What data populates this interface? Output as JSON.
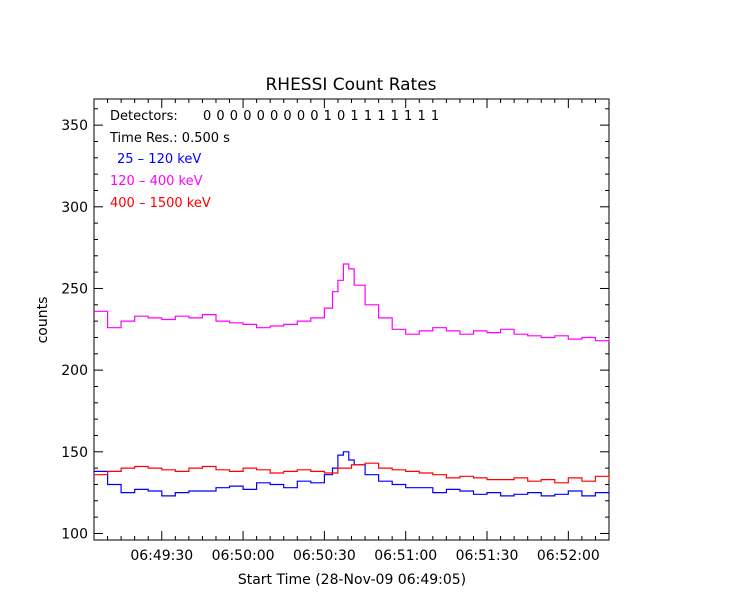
{
  "chart_data": {
    "type": "line",
    "title": "RHESSI Count Rates",
    "xlabel": "Start Time (28-Nov-09 06:49:05)",
    "ylabel": "counts",
    "x_unit": "seconds after 06:49:05",
    "xlim": [
      0,
      190
    ],
    "ylim": [
      96,
      366
    ],
    "x_ticks": [
      {
        "t": 25,
        "label": "06:49:30"
      },
      {
        "t": 55,
        "label": "06:50:00"
      },
      {
        "t": 85,
        "label": "06:50:30"
      },
      {
        "t": 115,
        "label": "06:51:00"
      },
      {
        "t": 145,
        "label": "06:51:30"
      },
      {
        "t": 175,
        "label": "06:52:00"
      }
    ],
    "y_ticks": [
      100,
      150,
      200,
      250,
      300,
      350
    ],
    "legend": {
      "detectors_label": "Detectors:",
      "detectors_flags": "0 0 0 0 0 0 0 0 0 1 0 1 1 1 1 1 1 1",
      "time_res": "Time Res.: 0.500 s",
      "placement": "top-left"
    },
    "series": [
      {
        "name": "25 – 120 keV",
        "color": "#0000ff",
        "values": [
          [
            0,
            138
          ],
          [
            5,
            130
          ],
          [
            10,
            125
          ],
          [
            15,
            127
          ],
          [
            20,
            126
          ],
          [
            25,
            123
          ],
          [
            30,
            125
          ],
          [
            35,
            126
          ],
          [
            40,
            126
          ],
          [
            45,
            128
          ],
          [
            50,
            129
          ],
          [
            55,
            127
          ],
          [
            60,
            131
          ],
          [
            65,
            130
          ],
          [
            70,
            128
          ],
          [
            75,
            132
          ],
          [
            80,
            131
          ],
          [
            85,
            136
          ],
          [
            88,
            140
          ],
          [
            90,
            148
          ],
          [
            92,
            150
          ],
          [
            94,
            145
          ],
          [
            96,
            142
          ],
          [
            100,
            136
          ],
          [
            105,
            132
          ],
          [
            110,
            130
          ],
          [
            115,
            128
          ],
          [
            120,
            128
          ],
          [
            125,
            125
          ],
          [
            130,
            127
          ],
          [
            135,
            126
          ],
          [
            140,
            124
          ],
          [
            145,
            125
          ],
          [
            150,
            123
          ],
          [
            155,
            124
          ],
          [
            160,
            125
          ],
          [
            165,
            123
          ],
          [
            170,
            124
          ],
          [
            175,
            126
          ],
          [
            180,
            123
          ],
          [
            185,
            125
          ],
          [
            190,
            124
          ]
        ]
      },
      {
        "name": "120 – 400 keV",
        "color": "#ff00ff",
        "values": [
          [
            0,
            236
          ],
          [
            5,
            226
          ],
          [
            10,
            230
          ],
          [
            15,
            233
          ],
          [
            20,
            232
          ],
          [
            25,
            231
          ],
          [
            30,
            233
          ],
          [
            35,
            232
          ],
          [
            40,
            234
          ],
          [
            45,
            230
          ],
          [
            50,
            229
          ],
          [
            55,
            228
          ],
          [
            60,
            226
          ],
          [
            65,
            227
          ],
          [
            70,
            228
          ],
          [
            75,
            230
          ],
          [
            80,
            232
          ],
          [
            85,
            238
          ],
          [
            88,
            248
          ],
          [
            90,
            255
          ],
          [
            92,
            265
          ],
          [
            94,
            262
          ],
          [
            96,
            252
          ],
          [
            100,
            240
          ],
          [
            105,
            232
          ],
          [
            110,
            225
          ],
          [
            115,
            222
          ],
          [
            120,
            224
          ],
          [
            125,
            226
          ],
          [
            130,
            224
          ],
          [
            135,
            222
          ],
          [
            140,
            224
          ],
          [
            145,
            223
          ],
          [
            150,
            225
          ],
          [
            155,
            222
          ],
          [
            160,
            221
          ],
          [
            165,
            220
          ],
          [
            170,
            221
          ],
          [
            175,
            219
          ],
          [
            180,
            220
          ],
          [
            185,
            218
          ],
          [
            190,
            220
          ]
        ]
      },
      {
        "name": "400 – 1500 keV",
        "color": "#ff0000",
        "values": [
          [
            0,
            136
          ],
          [
            5,
            138
          ],
          [
            10,
            140
          ],
          [
            15,
            141
          ],
          [
            20,
            140
          ],
          [
            25,
            139
          ],
          [
            30,
            138
          ],
          [
            35,
            140
          ],
          [
            40,
            141
          ],
          [
            45,
            139
          ],
          [
            50,
            138
          ],
          [
            55,
            140
          ],
          [
            60,
            139
          ],
          [
            65,
            137
          ],
          [
            70,
            138
          ],
          [
            75,
            139
          ],
          [
            80,
            138
          ],
          [
            85,
            137
          ],
          [
            90,
            140
          ],
          [
            95,
            142
          ],
          [
            100,
            143
          ],
          [
            105,
            140
          ],
          [
            110,
            139
          ],
          [
            115,
            138
          ],
          [
            120,
            137
          ],
          [
            125,
            136
          ],
          [
            130,
            134
          ],
          [
            135,
            135
          ],
          [
            140,
            134
          ],
          [
            145,
            133
          ],
          [
            150,
            133
          ],
          [
            155,
            134
          ],
          [
            160,
            132
          ],
          [
            165,
            133
          ],
          [
            170,
            131
          ],
          [
            175,
            134
          ],
          [
            180,
            132
          ],
          [
            185,
            135
          ],
          [
            190,
            133
          ]
        ]
      }
    ]
  }
}
